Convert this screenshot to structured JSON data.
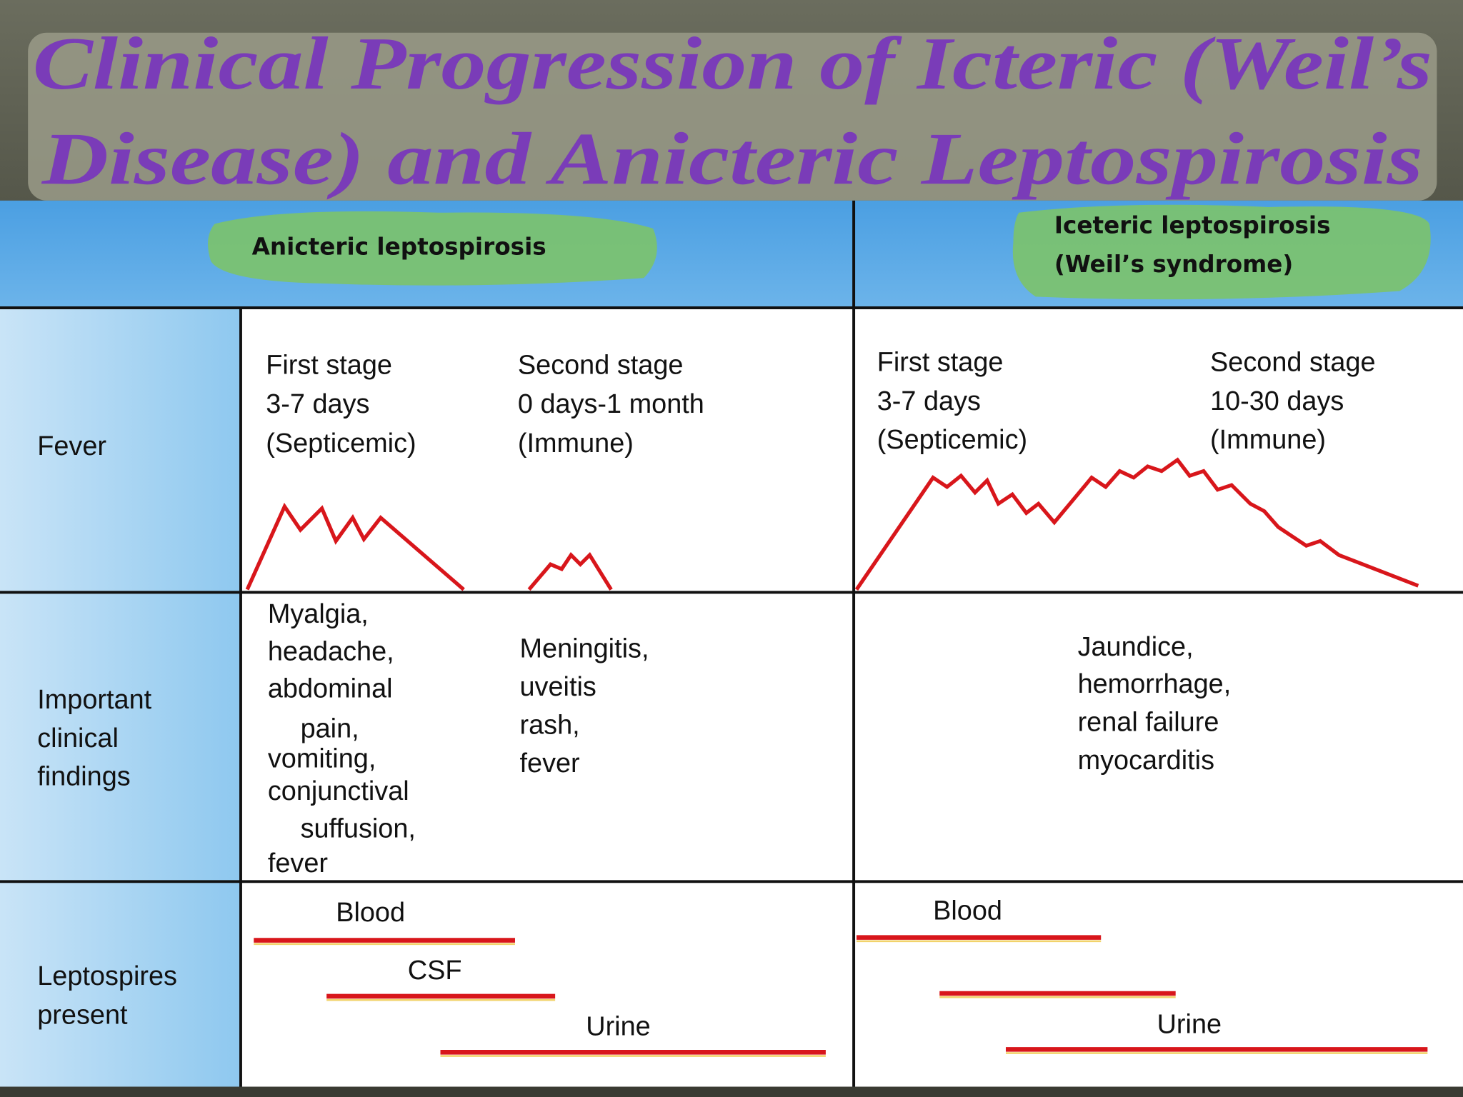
{
  "title": [
    "Clinical Progression of Icteric (Weil’s",
    "Disease) and Anicteric Leptospirosis"
  ],
  "headers": {
    "anicteric": [
      "Anicteric leptospirosis"
    ],
    "icteric": [
      "Iceteric leptospirosis",
      "(Weil’s syndrome)"
    ]
  },
  "fever": {
    "label": [
      "Fever"
    ],
    "anicteric_first": [
      "First stage",
      "3-7 days",
      "(Septicemic)"
    ],
    "anicteric_second": [
      "Second stage",
      "0 days-1 month",
      "(Immune)"
    ],
    "icteric_first": [
      "First stage",
      "3-7 days",
      "(Septicemic)"
    ],
    "icteric_second": [
      "Second stage",
      "10-30 days",
      "(Immune)"
    ]
  },
  "findings": {
    "label": [
      "Important",
      "clinical",
      "findings"
    ],
    "anicteric_first": [
      "Myalgia,",
      "headache,",
      "abdominal",
      "pain,",
      "vomiting,",
      "conjunctival",
      "suffusion,",
      "fever"
    ],
    "anicteric_second": [
      "Meningitis,",
      "uveitis",
      "rash,",
      "fever"
    ],
    "icteric": [
      "Jaundice,",
      "hemorrhage,",
      "renal failure",
      "myocarditis"
    ]
  },
  "leptospires": {
    "label": [
      "Leptospires",
      "present"
    ],
    "anicteric": [
      "Blood",
      "CSF",
      "Urine"
    ],
    "icteric": [
      "Blood",
      "Urine"
    ]
  }
}
